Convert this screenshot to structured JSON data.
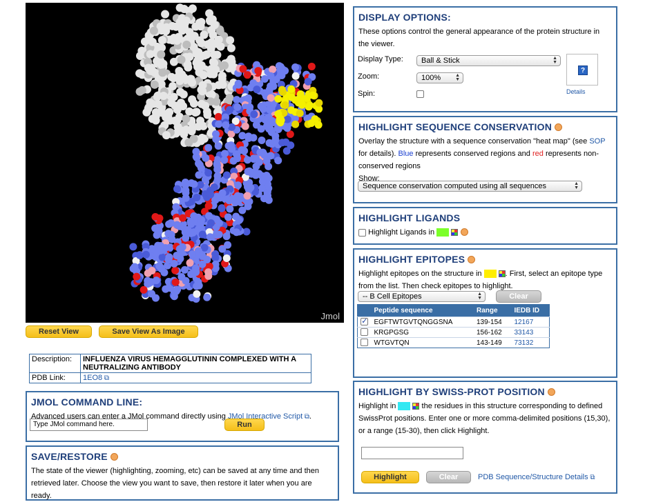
{
  "viewer": {
    "jmol_label": "Jmol",
    "reset_view": "Reset View",
    "save_view": "Save View As Image"
  },
  "description": {
    "desc_label": "Description:",
    "desc_value": "INFLUENZA VIRUS HEMAGGLUTININ COMPLEXED WITH A NEUTRALIZING ANTIBODY",
    "pdb_label": "PDB Link:",
    "pdb_value": "1EO8"
  },
  "command_line": {
    "title": "JMOL COMMAND LINE:",
    "text": "Advanced users can enter a JMol command directly using",
    "link": "JMol Interactive Script",
    "text_end": ".",
    "placeholder": "Type JMol command here.",
    "run": "Run"
  },
  "save_restore": {
    "title": "SAVE/RESTORE",
    "text": "The state of the viewer (highlighting, zooming, etc) can be saved at any time and then retrieved later. Choose the view you want to save, then restore it later when you are ready."
  },
  "display_options": {
    "title": "DISPLAY OPTIONS:",
    "text": "These options control the general appearance of the protein structure in the viewer.",
    "display_type_label": "Display Type:",
    "display_type_value": "Ball & Stick",
    "zoom_label": "Zoom:",
    "zoom_value": "100%",
    "spin_label": "Spin:",
    "help_icon": "?",
    "details": "Details"
  },
  "conservation": {
    "title": "HIGHLIGHT SEQUENCE CONSERVATION",
    "text1": "Overlay the structure with a sequence conservation \"heat map\" (see",
    "sop": "SOP",
    "text2": "for details).",
    "blue_word": "Blue",
    "text3": "represents conserved regions and",
    "red_word": "red",
    "text4": "represents non-conserved regions",
    "show_label": "Show:",
    "show_value": "Sequence conservation computed using all sequences"
  },
  "ligands": {
    "title": "HIGHLIGHT LIGANDS",
    "label": "Highlight Ligands in",
    "color": "#7cff2a"
  },
  "epitopes": {
    "title": "HIGHLIGHT EPITOPES",
    "text1": "Highlight epitopes on the structure in",
    "text2": ". First, select an epitope type from the list. Then check epitopes to highlight.",
    "color": "#ffee00",
    "type_value": "-- B Cell Epitopes",
    "clear": "Clear",
    "headers": [
      "Peptide sequence",
      "Range",
      "IEDB ID"
    ],
    "rows": [
      {
        "checked": true,
        "peptide": "EGFTWTGVTQNGGSNA",
        "range": "139-154",
        "id": "12167"
      },
      {
        "checked": false,
        "peptide": "KRGPGSG",
        "range": "156-162",
        "id": "33143"
      },
      {
        "checked": false,
        "peptide": "WTGVTQN",
        "range": "143-149",
        "id": "73132"
      }
    ]
  },
  "swissprot": {
    "title": "HIGHLIGHT BY SWISS-PROT POSITION",
    "text1": "Highlight in",
    "text2": "the residues in this structure corresponding to defined SwissProt positions. Enter one or more comma-delimited positions (15,30), or a range (15-30), then click Highlight.",
    "color": "#33e8f2",
    "highlight": "Highlight",
    "clear": "Clear",
    "pdb_details": "PDB Sequence/Structure Details"
  }
}
